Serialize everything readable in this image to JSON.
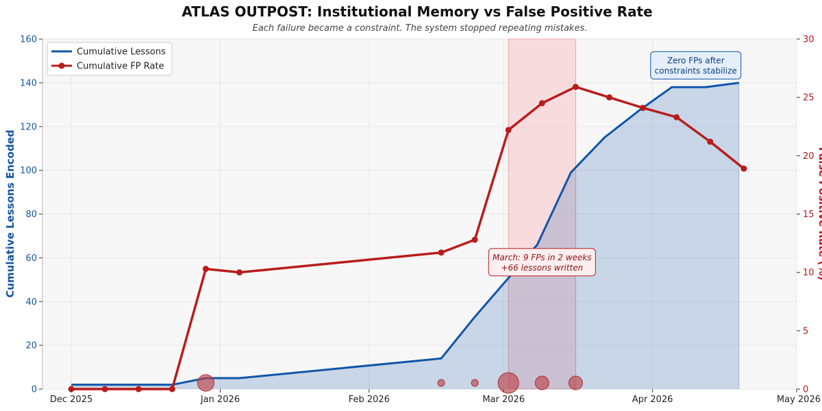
{
  "chart_data": {
    "type": "line",
    "title": "ATLAS OUTPOST: Institutional Memory vs False Positive Rate",
    "subtitle": "Each failure became a constraint. The system stopped repeating mistakes.",
    "ylabel_left": "Cumulative Lessons Encoded",
    "ylabel_right": "False Positive Rate (%)",
    "ylim_left": [
      0,
      160
    ],
    "ylim_right": [
      0,
      30
    ],
    "yticks_left": [
      0,
      20,
      40,
      60,
      80,
      100,
      120,
      140,
      160
    ],
    "yticks_right": [
      0,
      5,
      10,
      15,
      20,
      25,
      30
    ],
    "xlim": [
      "2025-11-25",
      "2026-05-01"
    ],
    "xticks": [
      {
        "date": "2025-12-01",
        "label": "Dec 2025"
      },
      {
        "date": "2026-01-01",
        "label": "Jan 2026"
      },
      {
        "date": "2026-02-01",
        "label": "Feb 2026"
      },
      {
        "date": "2026-03-01",
        "label": "Mar 2026"
      },
      {
        "date": "2026-04-01",
        "label": "Apr 2026"
      },
      {
        "date": "2026-05-01",
        "label": "May 2026"
      }
    ],
    "grid": true,
    "legend_position": "top-left",
    "series": [
      {
        "name": "Cumulative Lessons",
        "axis": "left",
        "color": "#1155a8",
        "fill": true,
        "points": [
          {
            "x": "2025-12-01",
            "y": 2
          },
          {
            "x": "2025-12-22",
            "y": 2
          },
          {
            "x": "2025-12-29",
            "y": 5
          },
          {
            "x": "2026-01-05",
            "y": 5
          },
          {
            "x": "2026-02-16",
            "y": 14
          },
          {
            "x": "2026-02-23",
            "y": 33
          },
          {
            "x": "2026-03-08",
            "y": 66
          },
          {
            "x": "2026-03-15",
            "y": 99
          },
          {
            "x": "2026-03-22",
            "y": 115
          },
          {
            "x": "2026-03-29",
            "y": 127
          },
          {
            "x": "2026-04-05",
            "y": 138
          },
          {
            "x": "2026-04-12",
            "y": 138
          },
          {
            "x": "2026-04-19",
            "y": 140
          }
        ]
      },
      {
        "name": "Cumulative FP Rate",
        "axis": "right",
        "color": "#b81c1c",
        "markers": true,
        "points": [
          {
            "x": "2025-12-01",
            "y": 0
          },
          {
            "x": "2025-12-08",
            "y": 0
          },
          {
            "x": "2025-12-15",
            "y": 0
          },
          {
            "x": "2025-12-22",
            "y": 0
          },
          {
            "x": "2025-12-29",
            "y": 10.3
          },
          {
            "x": "2026-01-05",
            "y": 10
          },
          {
            "x": "2026-02-16",
            "y": 11.7
          },
          {
            "x": "2026-02-23",
            "y": 12.8
          },
          {
            "x": "2026-03-02",
            "y": 22.2
          },
          {
            "x": "2026-03-09",
            "y": 24.5
          },
          {
            "x": "2026-03-16",
            "y": 25.9
          },
          {
            "x": "2026-03-23",
            "y": 25
          },
          {
            "x": "2026-03-30",
            "y": 24.1
          },
          {
            "x": "2026-04-06",
            "y": 23.3
          },
          {
            "x": "2026-04-13",
            "y": 21.2
          },
          {
            "x": "2026-04-20",
            "y": 18.9
          }
        ]
      }
    ],
    "bubbles": {
      "color": "#c0444a",
      "points": [
        {
          "x": "2025-12-29",
          "fp_count": 3
        },
        {
          "x": "2026-02-16",
          "fp_count": 1
        },
        {
          "x": "2026-02-23",
          "fp_count": 1
        },
        {
          "x": "2026-03-02",
          "fp_count": 5
        },
        {
          "x": "2026-03-09",
          "fp_count": 2
        },
        {
          "x": "2026-03-16",
          "fp_count": 2
        }
      ]
    },
    "highlight_region": {
      "x_start": "2026-03-02",
      "x_end": "2026-03-16",
      "color": "#f8c8cc"
    },
    "annotations": [
      {
        "lines": [
          "March: 9 FPs in 2 weeks",
          "+66 lessons written"
        ],
        "x": "2026-03-09",
        "y_left": 58,
        "style": "red"
      },
      {
        "lines": [
          "Zero FPs after",
          "constraints stabilize"
        ],
        "x": "2026-04-10",
        "y_left": 148,
        "style": "blue"
      }
    ]
  }
}
